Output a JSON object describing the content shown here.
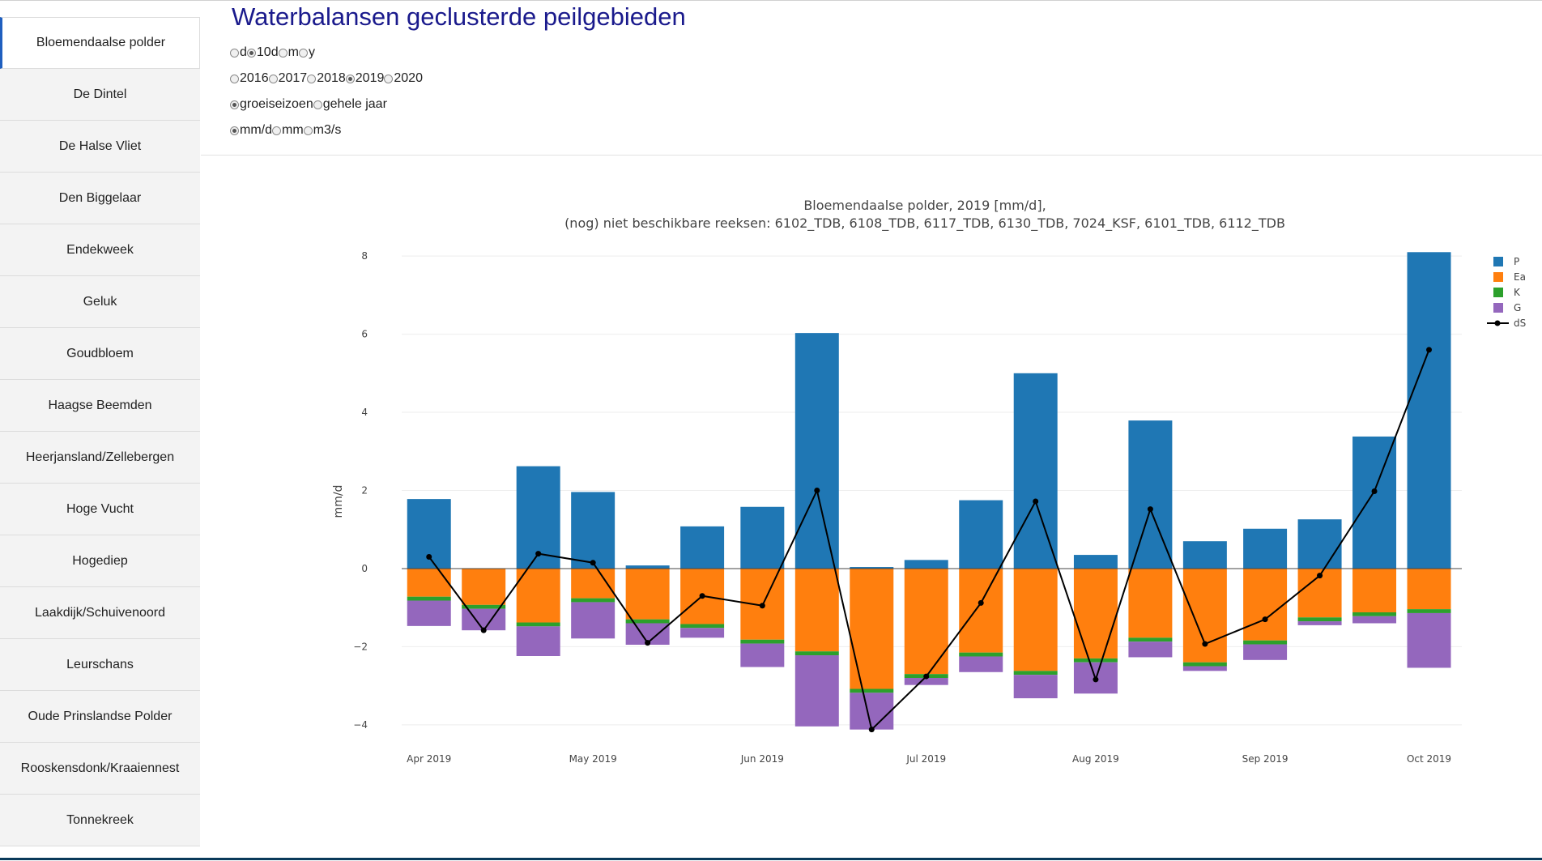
{
  "page": {
    "title": "Waterbalansen geclusterde peilgebieden"
  },
  "sidebar": {
    "active": 0,
    "items": [
      {
        "label": "Bloemendaalse polder"
      },
      {
        "label": "De Dintel"
      },
      {
        "label": "De Halse Vliet"
      },
      {
        "label": "Den Biggelaar"
      },
      {
        "label": "Endekweek"
      },
      {
        "label": "Geluk"
      },
      {
        "label": "Goudbloem"
      },
      {
        "label": "Haagse Beemden"
      },
      {
        "label": "Heerjansland/Zellebergen"
      },
      {
        "label": "Hoge Vucht"
      },
      {
        "label": "Hogediep"
      },
      {
        "label": "Laakdijk/Schuivenoord"
      },
      {
        "label": "Leurschans"
      },
      {
        "label": "Oude Prinslandse Polder"
      },
      {
        "label": "Rooskensdonk/Kraaiennest"
      },
      {
        "label": "Tonnekreek"
      }
    ]
  },
  "controls": {
    "interval": {
      "selected": "10d",
      "options": [
        {
          "label": "d",
          "value": "d"
        },
        {
          "label": "10d",
          "value": "10d"
        },
        {
          "label": "m",
          "value": "m"
        },
        {
          "label": "y",
          "value": "y"
        }
      ]
    },
    "year": {
      "selected": "2019",
      "options": [
        {
          "label": "2016",
          "value": "2016"
        },
        {
          "label": "2017",
          "value": "2017"
        },
        {
          "label": "2018",
          "value": "2018"
        },
        {
          "label": "2019",
          "value": "2019"
        },
        {
          "label": "2020",
          "value": "2020"
        }
      ]
    },
    "period": {
      "selected": "groeiseizoen",
      "options": [
        {
          "label": "groeiseizoen",
          "value": "groeiseizoen"
        },
        {
          "label": "gehele jaar",
          "value": "gehele jaar"
        }
      ]
    },
    "unit": {
      "selected": "mm/d",
      "options": [
        {
          "label": "mm/d",
          "value": "mm/d"
        },
        {
          "label": "mm",
          "value": "mm"
        },
        {
          "label": "m3/s",
          "value": "m3/s"
        }
      ]
    }
  },
  "chart_data": {
    "type": "bar",
    "stacked": true,
    "title": "Bloemendaalse polder, 2019  [mm/d],",
    "subtitle": "(nog) niet beschikbare reeksen: 6102_TDB, 6108_TDB, 6117_TDB, 6130_TDB, 7024_KSF, 6101_TDB, 6112_TDB",
    "xlabel": "",
    "ylabel": "mm/d",
    "ylim": [
      -4.5,
      8.5
    ],
    "yticks": [
      -4,
      -2,
      0,
      2,
      4,
      6,
      8
    ],
    "ytick_labels": [
      "−4",
      "−2",
      "0",
      "2",
      "4",
      "6",
      "8"
    ],
    "xlim": [
      "2019-03-27",
      "2019-10-07"
    ],
    "xticks": [
      "2019-04-01",
      "2019-05-01",
      "2019-06-01",
      "2019-07-01",
      "2019-08-01",
      "2019-09-01",
      "2019-10-01"
    ],
    "xtick_labels": [
      "Apr 2019",
      "May 2019",
      "Jun 2019",
      "Jul 2019",
      "Aug 2019",
      "Sep 2019",
      "Oct 2019"
    ],
    "grid": true,
    "legend": "top-right",
    "x": [
      "2019-04-01",
      "2019-04-11",
      "2019-04-21",
      "2019-05-01",
      "2019-05-11",
      "2019-05-21",
      "2019-06-01",
      "2019-06-11",
      "2019-06-21",
      "2019-07-01",
      "2019-07-11",
      "2019-07-21",
      "2019-08-01",
      "2019-08-11",
      "2019-08-21",
      "2019-09-01",
      "2019-09-11",
      "2019-09-21",
      "2019-10-01"
    ],
    "series": [
      {
        "name": "P",
        "type": "bar",
        "color": "#1f77b4",
        "values": [
          1.78,
          0,
          2.62,
          1.96,
          0.08,
          1.08,
          1.58,
          6.03,
          0.04,
          0.22,
          1.75,
          5.0,
          0.35,
          3.79,
          0.7,
          1.02,
          1.26,
          3.38,
          8.1
        ]
      },
      {
        "name": "Ea",
        "type": "bar",
        "color": "#ff7f0e",
        "values": [
          -0.72,
          -0.93,
          -1.38,
          -0.76,
          -1.3,
          -1.42,
          -1.82,
          -2.12,
          -3.08,
          -2.7,
          -2.15,
          -2.62,
          -2.3,
          -1.77,
          -2.4,
          -1.84,
          -1.25,
          -1.12,
          -1.04
        ]
      },
      {
        "name": "K",
        "type": "bar",
        "color": "#2ca02c",
        "values": [
          -0.1,
          -0.1,
          -0.1,
          -0.1,
          -0.1,
          -0.1,
          -0.1,
          -0.1,
          -0.1,
          -0.1,
          -0.1,
          -0.1,
          -0.1,
          -0.1,
          -0.1,
          -0.1,
          -0.1,
          -0.1,
          -0.1
        ]
      },
      {
        "name": "G",
        "type": "bar",
        "color": "#9467bd",
        "values": [
          -0.65,
          -0.55,
          -0.76,
          -0.93,
          -0.55,
          -0.25,
          -0.6,
          -1.82,
          -0.94,
          -0.18,
          -0.4,
          -0.6,
          -0.8,
          -0.4,
          -0.12,
          -0.4,
          -0.1,
          -0.18,
          -1.4
        ]
      },
      {
        "name": "dS",
        "type": "line",
        "color": "#000000",
        "values": [
          0.3,
          -1.58,
          0.38,
          0.15,
          -1.9,
          -0.7,
          -0.95,
          2.0,
          -4.12,
          -2.76,
          -0.88,
          1.72,
          -2.84,
          1.52,
          -1.93,
          -1.3,
          -0.18,
          1.98,
          5.6
        ]
      }
    ]
  }
}
